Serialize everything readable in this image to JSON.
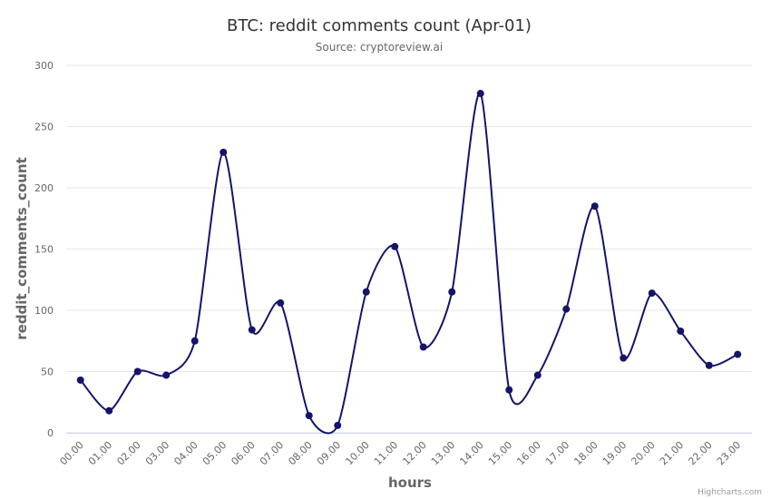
{
  "chart_data": {
    "type": "line",
    "title": "BTC: reddit comments count (Apr-01)",
    "subtitle": "Source: cryptoreview.ai",
    "xlabel": "hours",
    "ylabel": "reddit_comments_count",
    "categories": [
      "00.00",
      "01.00",
      "02.00",
      "03.00",
      "04.00",
      "05.00",
      "06.00",
      "07.00",
      "08.00",
      "09.00",
      "10.00",
      "11.00",
      "12.00",
      "13.00",
      "14.00",
      "15.00",
      "16.00",
      "17.00",
      "18.00",
      "19.00",
      "20.00",
      "21.00",
      "22.00",
      "23.00"
    ],
    "series": [
      {
        "values": [
          43,
          18,
          50,
          47,
          75,
          229,
          84,
          106,
          14,
          6,
          115,
          152,
          70,
          115,
          277,
          35,
          47,
          101,
          185,
          61,
          114,
          83,
          55,
          64
        ]
      }
    ],
    "ylim": [
      0,
      300
    ],
    "yticks": [
      0,
      50,
      100,
      150,
      200,
      250,
      300
    ],
    "grid": true,
    "legend": "none",
    "line_color": "#14146b",
    "credits": "Highcharts.com"
  }
}
